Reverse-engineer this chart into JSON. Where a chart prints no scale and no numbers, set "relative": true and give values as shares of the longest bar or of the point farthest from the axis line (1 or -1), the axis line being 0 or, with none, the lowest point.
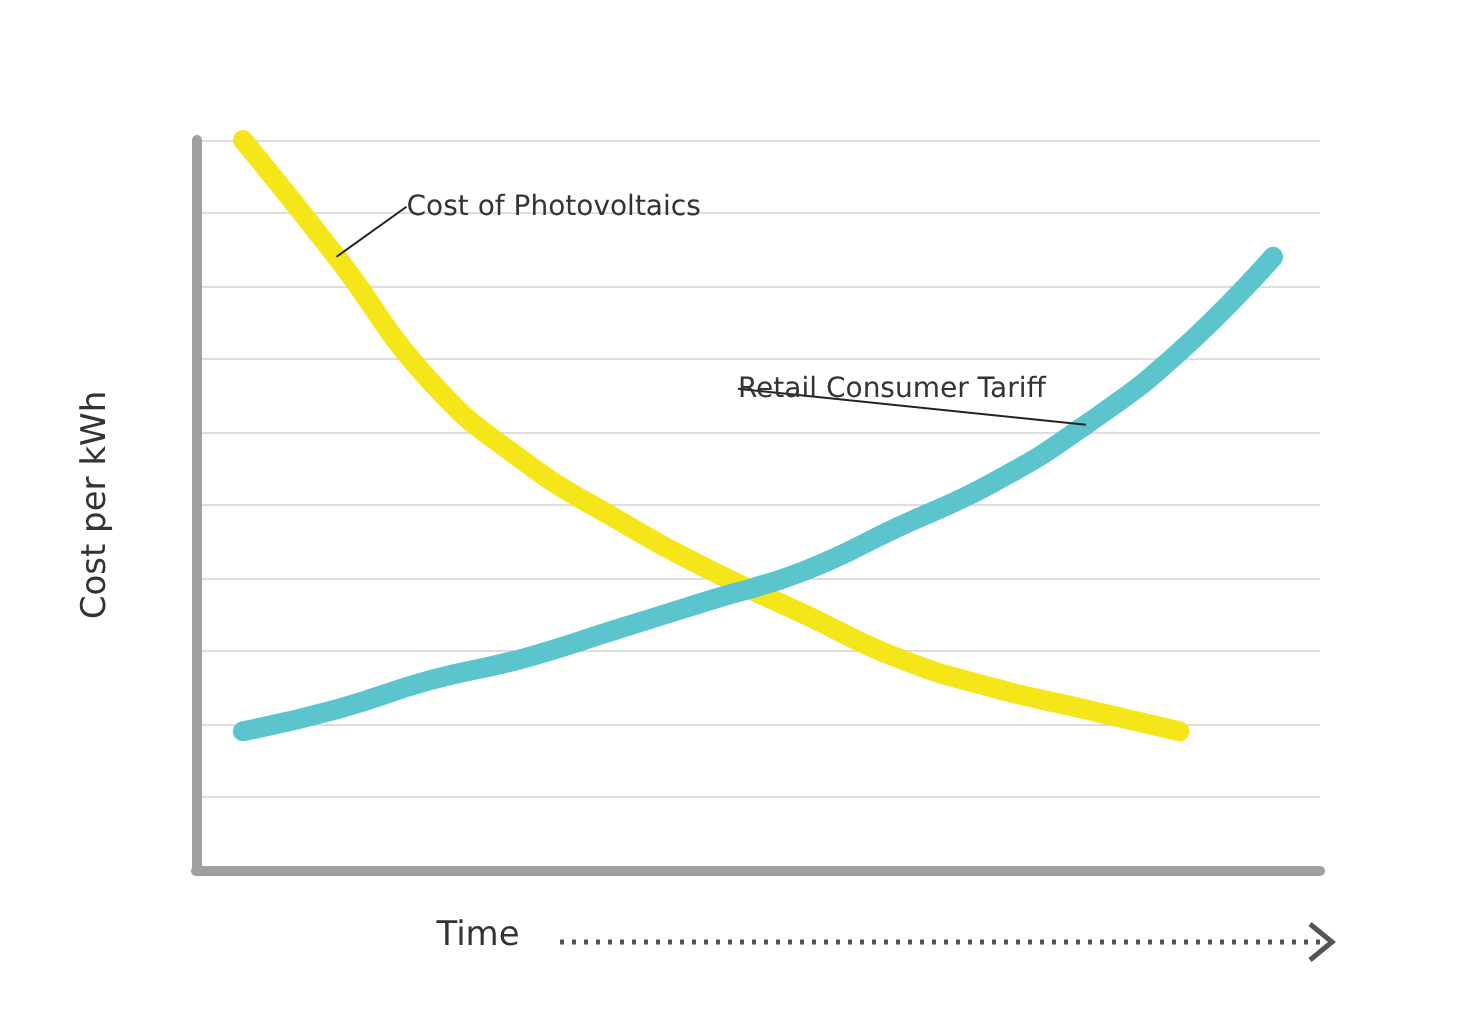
{
  "chart_data": {
    "type": "line",
    "relative": true,
    "xlabel": "Time",
    "ylabel": "Cost per kWh",
    "grid": "y",
    "marker": "none",
    "line_style": "solid",
    "categories": [
      null,
      null,
      null,
      null,
      null,
      null,
      null,
      null,
      null,
      null,
      null,
      null
    ],
    "series": [
      {
        "name": "Cost of Photovoltaics",
        "color": "#f5e61a",
        "values": [
          1,
          0.84,
          0.67,
          0.56,
          0.48,
          0.41,
          0.35,
          0.29,
          0.25,
          0.22,
          0.19,
          null
        ]
      },
      {
        "name": "Retail Consumer Tariff",
        "color": "#5bc4cc",
        "values": [
          0.19,
          0.22,
          0.26,
          0.29,
          0.33,
          0.37,
          0.41,
          0.47,
          0.53,
          0.61,
          0.71,
          0.84
        ]
      }
    ]
  }
}
